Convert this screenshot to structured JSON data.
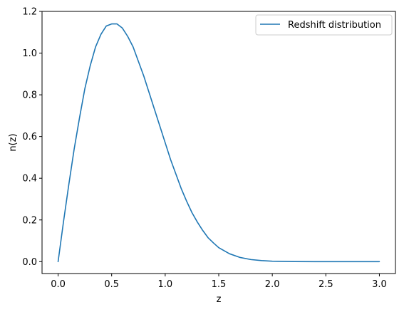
{
  "chart_data": {
    "type": "line",
    "xlabel": "z",
    "ylabel": "n(z)",
    "xlim": [
      -0.15,
      3.15
    ],
    "ylim": [
      -0.057,
      1.2
    ],
    "xticks": [
      0.0,
      0.5,
      1.0,
      1.5,
      2.0,
      2.5,
      3.0
    ],
    "xtick_labels": [
      "0.0",
      "0.5",
      "1.0",
      "1.5",
      "2.0",
      "2.5",
      "3.0"
    ],
    "yticks": [
      0.0,
      0.2,
      0.4,
      0.6,
      0.8,
      1.0,
      1.2
    ],
    "ytick_labels": [
      "0.0",
      "0.2",
      "0.4",
      "0.6",
      "0.8",
      "1.0",
      "1.2"
    ],
    "grid": false,
    "legend_position": "top-right",
    "series": [
      {
        "name": "Redshift distribution",
        "color": "#1f77b4",
        "x": [
          0.0,
          0.05,
          0.1,
          0.15,
          0.2,
          0.25,
          0.3,
          0.35,
          0.4,
          0.45,
          0.5,
          0.55,
          0.6,
          0.65,
          0.7,
          0.75,
          0.8,
          0.85,
          0.9,
          0.95,
          1.0,
          1.05,
          1.1,
          1.15,
          1.2,
          1.25,
          1.3,
          1.35,
          1.4,
          1.45,
          1.5,
          1.6,
          1.7,
          1.8,
          1.9,
          2.0,
          2.2,
          2.4,
          2.6,
          2.8,
          3.0
        ],
        "y": [
          0.0,
          0.19,
          0.37,
          0.54,
          0.69,
          0.83,
          0.94,
          1.03,
          1.09,
          1.13,
          1.14,
          1.14,
          1.12,
          1.08,
          1.03,
          0.96,
          0.89,
          0.81,
          0.73,
          0.65,
          0.57,
          0.49,
          0.42,
          0.35,
          0.29,
          0.235,
          0.19,
          0.15,
          0.115,
          0.09,
          0.067,
          0.038,
          0.02,
          0.01,
          0.005,
          0.002,
          0.0005,
          0.0001,
          0.0,
          0.0,
          0.0
        ]
      }
    ]
  }
}
